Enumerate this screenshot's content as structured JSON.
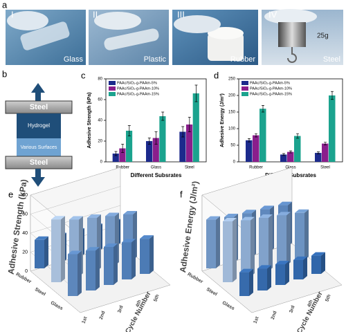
{
  "panel_a": {
    "panel_label": "a",
    "images": [
      {
        "label": "I",
        "caption": "Glass"
      },
      {
        "label": "II",
        "caption": "Plastic"
      },
      {
        "label": "III",
        "caption": "Rubber"
      },
      {
        "label": "IV",
        "caption": "Steel",
        "weight": "25g"
      }
    ]
  },
  "panel_b": {
    "panel_label": "b",
    "top": "Steel",
    "hydrogel": "Hydrogel",
    "surface": "Various Surfaces",
    "bottom": "Steel"
  },
  "chart_data": [
    {
      "type": "bar",
      "panel_label": "c",
      "ylabel": "Adhesive Strength (kPa)",
      "xlabel": "Different Subsrates",
      "categories": [
        "Rubber",
        "Glass",
        "Steel"
      ],
      "ylim": [
        0,
        80
      ],
      "yticks": [
        0,
        20,
        40,
        60,
        80
      ],
      "series": [
        {
          "name": "PAAc/SiO₂-g-PAAm-5%",
          "color": "#1c2a8c",
          "values": [
            8,
            20,
            29
          ],
          "errors": [
            2,
            3,
            5
          ]
        },
        {
          "name": "PAAc/SiO₂-g-PAAm-10%",
          "color": "#8a1e8c",
          "values": [
            13,
            23,
            36
          ],
          "errors": [
            4,
            6,
            7
          ]
        },
        {
          "name": "PAAc/SiO₂-g-PAAm-15%",
          "color": "#1ba38e",
          "values": [
            30,
            44,
            66
          ],
          "errors": [
            5,
            4,
            8
          ]
        }
      ]
    },
    {
      "type": "bar",
      "panel_label": "d",
      "ylabel": "Adhesive Energy (J/m²)",
      "xlabel": "Different Subsrates",
      "categories": [
        "Rubber",
        "Glass",
        "Steel"
      ],
      "ylim": [
        0,
        250
      ],
      "yticks": [
        0,
        50,
        100,
        150,
        200,
        250
      ],
      "series": [
        {
          "name": "PAAc/SiO₂-g-PAAm-5%",
          "color": "#1c2a8c",
          "values": [
            65,
            22,
            27
          ],
          "errors": [
            5,
            3,
            3
          ]
        },
        {
          "name": "PAAc/SiO₂-g-PAAm-10%",
          "color": "#8a1e8c",
          "values": [
            80,
            30,
            55
          ],
          "errors": [
            5,
            3,
            4
          ]
        },
        {
          "name": "PAAc/SiO₂-g-PAAm-15%",
          "color": "#1ba38e",
          "values": [
            160,
            78,
            200
          ],
          "errors": [
            10,
            7,
            12
          ]
        }
      ]
    },
    {
      "type": "bar3d",
      "panel_label": "e",
      "zlabel": "Adhesive Strength (kPa)",
      "collabel": "Cycle Number",
      "rows": [
        "Rubber",
        "Steel",
        "Glass"
      ],
      "columns": [
        "1st",
        "2nd",
        "3rd",
        "4th",
        "5th"
      ],
      "zlim": [
        0,
        80
      ],
      "zticks": [
        0,
        20,
        40,
        60,
        80
      ],
      "values": [
        [
          30,
          28,
          27,
          26,
          25
        ],
        [
          66,
          60,
          56,
          52,
          48
        ],
        [
          44,
          42,
          40,
          39,
          37
        ]
      ]
    },
    {
      "type": "bar3d",
      "panel_label": "f",
      "zlabel": "Adhesive Energy (J/m²)",
      "collabel": "Cycle Number",
      "rows": [
        "Rubber",
        "Steel",
        "Glass"
      ],
      "columns": [
        "1st",
        "2nd",
        "3rd",
        "4th",
        "5th"
      ],
      "zlim": [
        0,
        250
      ],
      "values": [
        [
          160,
          150,
          145,
          140,
          135
        ],
        [
          200,
          185,
          175,
          165,
          155
        ],
        [
          78,
          72,
          68,
          64,
          60
        ]
      ]
    }
  ]
}
